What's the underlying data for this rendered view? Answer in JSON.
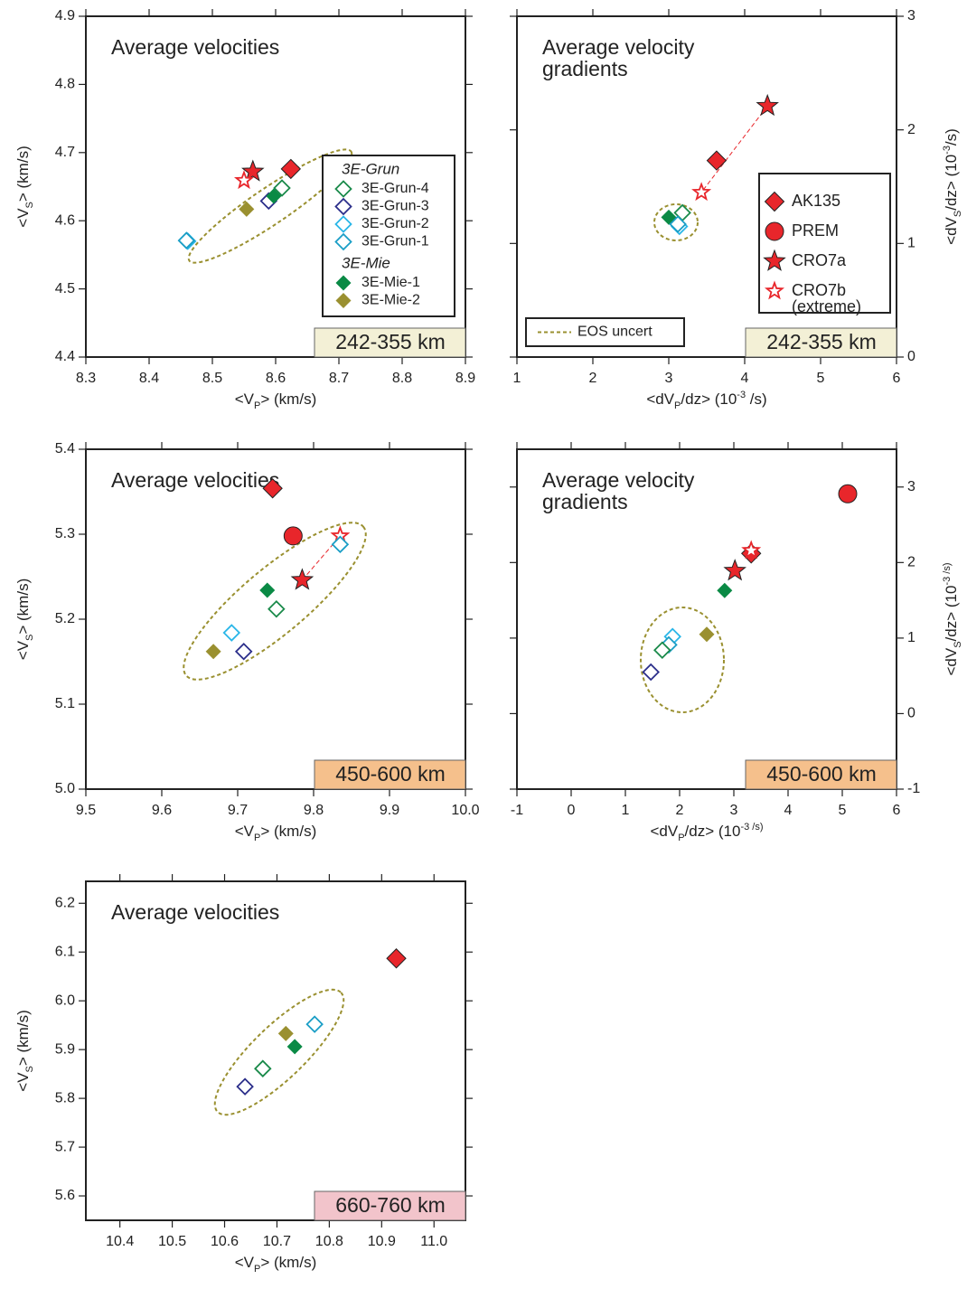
{
  "chart_data": [
    {
      "type": "scatter",
      "title": "Average velocities",
      "xlabel": [
        {
          "text": "<V"
        },
        {
          "text": "P",
          "script": "sub"
        },
        {
          "text": "> (km/s)"
        }
      ],
      "ylabel": [
        {
          "text": "<V"
        },
        {
          "text": "S",
          "script": "sub"
        },
        {
          "text": "> (km/s)"
        }
      ],
      "region": {
        "text": "242-355 km",
        "color": "#f3f0d6"
      },
      "xlim": [
        8.3,
        8.9
      ],
      "ylim": [
        4.4,
        4.9
      ],
      "xticks": [
        8.3,
        8.4,
        8.5,
        8.6,
        8.7,
        8.8,
        8.9
      ],
      "yticks": [
        4.4,
        4.5,
        4.6,
        4.7,
        4.8,
        4.9
      ],
      "yaxis_side": "left",
      "legend": "right",
      "series": [
        {
          "name": "3E-Grun-4",
          "group": "3E-Grun",
          "marker": "diamond",
          "filled": false,
          "color": "#1a8a4a",
          "x": [
            8.61
          ],
          "values": [
            4.648
          ]
        },
        {
          "name": "3E-Grun-3",
          "marker": "diamond",
          "filled": false,
          "color": "#2b2e8a",
          "x": [
            8.589
          ],
          "values": [
            4.629
          ]
        },
        {
          "name": "3E-Grun-2",
          "marker": "diamond",
          "filled": false,
          "color": "#29b6e8",
          "x": [
            8.461
          ],
          "values": [
            4.57
          ]
        },
        {
          "name": "3E-Grun-1",
          "marker": "diamond",
          "filled": false,
          "color": "#1a9ec6",
          "x": [
            8.459
          ],
          "values": [
            4.571
          ]
        },
        {
          "name": "3E-Mie-1",
          "group": "3E-Mie",
          "marker": "diamond",
          "filled": true,
          "color": "#0a8a45",
          "x": [
            8.597
          ],
          "values": [
            4.636
          ]
        },
        {
          "name": "3E-Mie-2",
          "marker": "diamond",
          "filled": true,
          "color": "#9a9030",
          "x": [
            8.554
          ],
          "values": [
            4.617
          ]
        },
        {
          "marker": "diamond",
          "filled": true,
          "color": "#e8262b",
          "outline": "#222222",
          "x": [
            8.624
          ],
          "values": [
            4.676
          ]
        },
        {
          "marker": "star",
          "filled": true,
          "color": "#e8262b",
          "outline": "#222222",
          "x": [
            8.564
          ],
          "values": [
            4.672
          ]
        },
        {
          "marker": "star",
          "filled": false,
          "color": "#e8262b",
          "x": [
            8.55
          ],
          "values": [
            4.659
          ]
        }
      ]
    },
    {
      "type": "scatter",
      "title": "Average velocity\ngradients",
      "xlabel": [
        {
          "text": "<dV"
        },
        {
          "text": "P",
          "script": "sub"
        },
        {
          "text": "/dz> (10"
        },
        {
          "text": "-3",
          "script": "sup"
        },
        {
          "text": " /s)"
        }
      ],
      "ylabel": [
        {
          "text": "<dV"
        },
        {
          "text": "S",
          "script": "sub"
        },
        {
          "text": "/dz> (10"
        },
        {
          "text": "-3",
          "script": "sup"
        },
        {
          "text": "/s)"
        }
      ],
      "region": {
        "text": "242-355 km",
        "color": "#f3f0d6"
      },
      "xlim": [
        1,
        6
      ],
      "ylim": [
        0,
        3
      ],
      "xticks": [
        1,
        2,
        3,
        4,
        5,
        6
      ],
      "yticks": [
        0,
        1,
        2,
        3
      ],
      "yaxis_side": "right",
      "legend": "right",
      "eos_label": "EOS uncert",
      "eos_color": "#9a9030",
      "series": [
        {
          "name": "AK135",
          "marker": "diamond",
          "filled": true,
          "color": "#e8262b",
          "outline": "#222222",
          "x": [
            3.63
          ],
          "values": [
            1.73
          ]
        },
        {
          "name": "PREM",
          "marker": "circle",
          "filled": true,
          "color": "#e8262b",
          "outline": "#222222",
          "x": [],
          "values": []
        },
        {
          "name": "CRO7a",
          "marker": "star",
          "filled": true,
          "color": "#e8262b",
          "outline": "#222222",
          "x": [
            4.3
          ],
          "values": [
            2.21
          ]
        },
        {
          "name": "CRO7b\n(extreme)",
          "marker": "star",
          "filled": false,
          "color": "#e8262b",
          "x": [
            3.43
          ],
          "values": [
            1.45
          ]
        },
        {
          "marker": "diamond",
          "filled": true,
          "color": "#0a8a45",
          "x": [
            3.0
          ],
          "values": [
            1.23
          ]
        },
        {
          "marker": "diamond",
          "filled": false,
          "color": "#1a8a4a",
          "x": [
            3.18
          ],
          "values": [
            1.27
          ]
        },
        {
          "marker": "diamond",
          "filled": false,
          "color": "#29b6e8",
          "x": [
            3.14
          ],
          "values": [
            1.15
          ]
        },
        {
          "marker": "diamond",
          "filled": false,
          "color": "#1a9ec6",
          "x": [
            3.12
          ],
          "values": [
            1.17
          ]
        }
      ]
    },
    {
      "type": "scatter",
      "title": "Average velocities",
      "xlabel": [
        {
          "text": "<V"
        },
        {
          "text": "P",
          "script": "sub"
        },
        {
          "text": "> (km/s)"
        }
      ],
      "ylabel": [
        {
          "text": "<V"
        },
        {
          "text": "S",
          "script": "sub"
        },
        {
          "text": "> (km/s)"
        }
      ],
      "region": {
        "text": "450-600 km",
        "color": "#f5c08c"
      },
      "xlim": [
        9.5,
        10
      ],
      "ylim": [
        5,
        5.4
      ],
      "xticks": [
        9.5,
        9.6,
        9.7,
        9.8,
        9.9,
        {
          "value": 10,
          "label": "10.0"
        }
      ],
      "yticks": [
        {
          "value": 5,
          "label": "5.0"
        },
        5.1,
        5.2,
        5.3,
        5.4
      ],
      "yaxis_side": "left",
      "series": [
        {
          "marker": "diamond",
          "filled": true,
          "color": "#e8262b",
          "outline": "#222222",
          "x": [
            9.746
          ],
          "values": [
            5.354
          ]
        },
        {
          "marker": "circle",
          "filled": true,
          "color": "#e8262b",
          "outline": "#222222",
          "x": [
            9.773
          ],
          "values": [
            5.298
          ]
        },
        {
          "marker": "star",
          "filled": true,
          "color": "#e8262b",
          "outline": "#222222",
          "x": [
            9.785
          ],
          "values": [
            5.246
          ]
        },
        {
          "marker": "star",
          "filled": false,
          "color": "#e8262b",
          "x": [
            9.835
          ],
          "values": [
            5.298
          ]
        },
        {
          "marker": "diamond",
          "filled": false,
          "color": "#1a9ec6",
          "x": [
            9.835
          ],
          "values": [
            5.288
          ]
        },
        {
          "marker": "diamond",
          "filled": true,
          "color": "#0a8a45",
          "x": [
            9.739
          ],
          "values": [
            5.234
          ]
        },
        {
          "marker": "diamond",
          "filled": false,
          "color": "#1a8a4a",
          "x": [
            9.751
          ],
          "values": [
            5.212
          ]
        },
        {
          "marker": "diamond",
          "filled": false,
          "color": "#29b6e8",
          "x": [
            9.692
          ],
          "values": [
            5.184
          ]
        },
        {
          "marker": "diamond",
          "filled": false,
          "color": "#2b2e8a",
          "x": [
            9.708
          ],
          "values": [
            5.162
          ]
        },
        {
          "marker": "diamond",
          "filled": true,
          "color": "#9a9030",
          "x": [
            9.668
          ],
          "values": [
            5.162
          ]
        }
      ]
    },
    {
      "type": "scatter",
      "title": "Average velocity\ngradients",
      "xlabel": [
        {
          "text": "<dV"
        },
        {
          "text": "P",
          "script": "sub"
        },
        {
          "text": "/dz> (10"
        },
        {
          "text": "-3 /s)",
          "script": "sup"
        }
      ],
      "ylabel": [
        {
          "text": "<dV"
        },
        {
          "text": "S",
          "script": "sub"
        },
        {
          "text": "/dz> (10"
        },
        {
          "text": "-3 /s)",
          "script": "sup"
        }
      ],
      "region": {
        "text": "450-600 km",
        "color": "#f5c08c"
      },
      "xlim": [
        -1,
        6
      ],
      "ylim": [
        -1,
        3.5
      ],
      "xticks": [
        -1,
        0,
        1,
        2,
        3,
        4,
        5,
        6
      ],
      "yticks": [
        -1,
        0,
        1,
        2,
        3
      ],
      "yaxis_side": "right",
      "series": [
        {
          "marker": "circle",
          "filled": true,
          "color": "#e8262b",
          "outline": "#222222",
          "x": [
            5.1
          ],
          "values": [
            2.91
          ]
        },
        {
          "marker": "diamond",
          "filled": true,
          "color": "#e8262b",
          "outline": "#222222",
          "x": [
            3.32
          ],
          "values": [
            2.12
          ]
        },
        {
          "marker": "star",
          "filled": false,
          "color": "#e8262b",
          "x": [
            3.32
          ],
          "values": [
            2.16
          ]
        },
        {
          "marker": "star",
          "filled": true,
          "color": "#e8262b",
          "outline": "#222222",
          "x": [
            3.02
          ],
          "values": [
            1.89
          ]
        },
        {
          "marker": "diamond",
          "filled": true,
          "color": "#0a8a45",
          "x": [
            2.83
          ],
          "values": [
            1.63
          ]
        },
        {
          "marker": "diamond",
          "filled": true,
          "color": "#9a9030",
          "x": [
            2.5
          ],
          "values": [
            1.05
          ]
        },
        {
          "marker": "diamond",
          "filled": false,
          "color": "#29b6e8",
          "x": [
            1.87
          ],
          "values": [
            1.02
          ]
        },
        {
          "marker": "diamond",
          "filled": false,
          "color": "#1a9ec6",
          "x": [
            1.8
          ],
          "values": [
            0.91
          ]
        },
        {
          "marker": "diamond",
          "filled": false,
          "color": "#1a8a4a",
          "x": [
            1.68
          ],
          "values": [
            0.84
          ]
        },
        {
          "marker": "diamond",
          "filled": false,
          "color": "#2b2e8a",
          "x": [
            1.47
          ],
          "values": [
            0.55
          ]
        }
      ]
    },
    {
      "type": "scatter",
      "title": "Average velocities",
      "xlabel": [
        {
          "text": "<V"
        },
        {
          "text": "P",
          "script": "sub"
        },
        {
          "text": "> (km/s)"
        }
      ],
      "ylabel": [
        {
          "text": "<V"
        },
        {
          "text": "S",
          "script": "sub"
        },
        {
          "text": "> (km/s)"
        }
      ],
      "region": {
        "text": "660-760 km",
        "color": "#f2c4cb"
      },
      "xlim": [
        10.335,
        11.06
      ],
      "ylim": [
        5.55,
        6.245
      ],
      "xticks": [
        10.4,
        10.5,
        10.6,
        10.7,
        10.8,
        10.9,
        {
          "value": 11,
          "label": "11.0"
        }
      ],
      "yticks": [
        5.6,
        5.7,
        5.8,
        5.9,
        {
          "value": 6,
          "label": "6.0"
        },
        6.1,
        6.2
      ],
      "yaxis_side": "left",
      "series": [
        {
          "marker": "diamond",
          "filled": true,
          "color": "#e8262b",
          "outline": "#222222",
          "x": [
            10.928
          ],
          "values": [
            6.087
          ]
        },
        {
          "marker": "diamond",
          "filled": false,
          "color": "#1a9ec6",
          "x": [
            10.772
          ],
          "values": [
            5.952
          ]
        },
        {
          "marker": "diamond",
          "filled": true,
          "color": "#9a9030",
          "x": [
            10.717
          ],
          "values": [
            5.933
          ]
        },
        {
          "marker": "diamond",
          "filled": true,
          "color": "#0a8a45",
          "x": [
            10.734
          ],
          "values": [
            5.906
          ]
        },
        {
          "marker": "diamond",
          "filled": false,
          "color": "#1a8a4a",
          "x": [
            10.673
          ],
          "values": [
            5.861
          ]
        },
        {
          "marker": "diamond",
          "filled": false,
          "color": "#2b2e8a",
          "x": [
            10.639
          ],
          "values": [
            5.824
          ]
        }
      ]
    }
  ]
}
